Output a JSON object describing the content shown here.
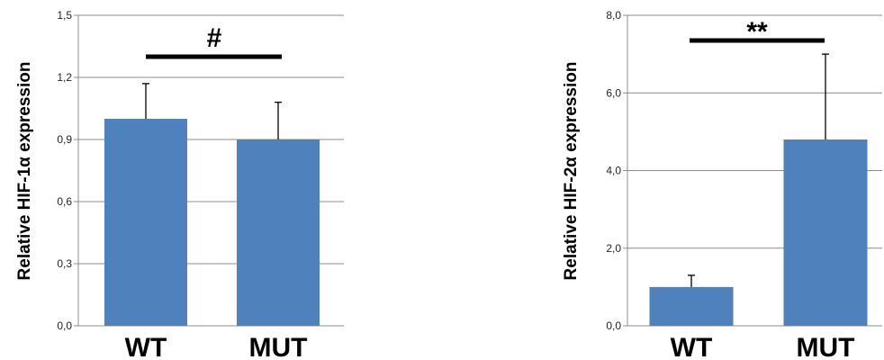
{
  "chart_data": [
    {
      "type": "bar",
      "categories": [
        "WT",
        "MUT"
      ],
      "values": [
        1.0,
        0.9
      ],
      "error_upper": [
        1.17,
        1.08
      ],
      "ylabel": "Relative HIF-1α expression",
      "ylim": [
        0,
        1.5
      ],
      "yticks": [
        "0,0",
        "0,3",
        "0,6",
        "0,9",
        "1,2",
        "1,5"
      ],
      "ytick_values": [
        0,
        0.3,
        0.6,
        0.9,
        1.2,
        1.5
      ],
      "grid": true,
      "significance": "#",
      "bar_color": "#4f81bd"
    },
    {
      "type": "bar",
      "categories": [
        "WT",
        "MUT"
      ],
      "values": [
        1.0,
        4.8
      ],
      "error_upper": [
        1.3,
        7.0
      ],
      "ylabel": "Relative HIF-2α expression",
      "ylim": [
        0,
        8
      ],
      "yticks": [
        "0,0",
        "2,0",
        "4,0",
        "6,0",
        "8,0"
      ],
      "ytick_values": [
        0,
        2,
        4,
        6,
        8
      ],
      "grid": true,
      "significance": "**",
      "bar_color": "#4f81bd"
    }
  ]
}
